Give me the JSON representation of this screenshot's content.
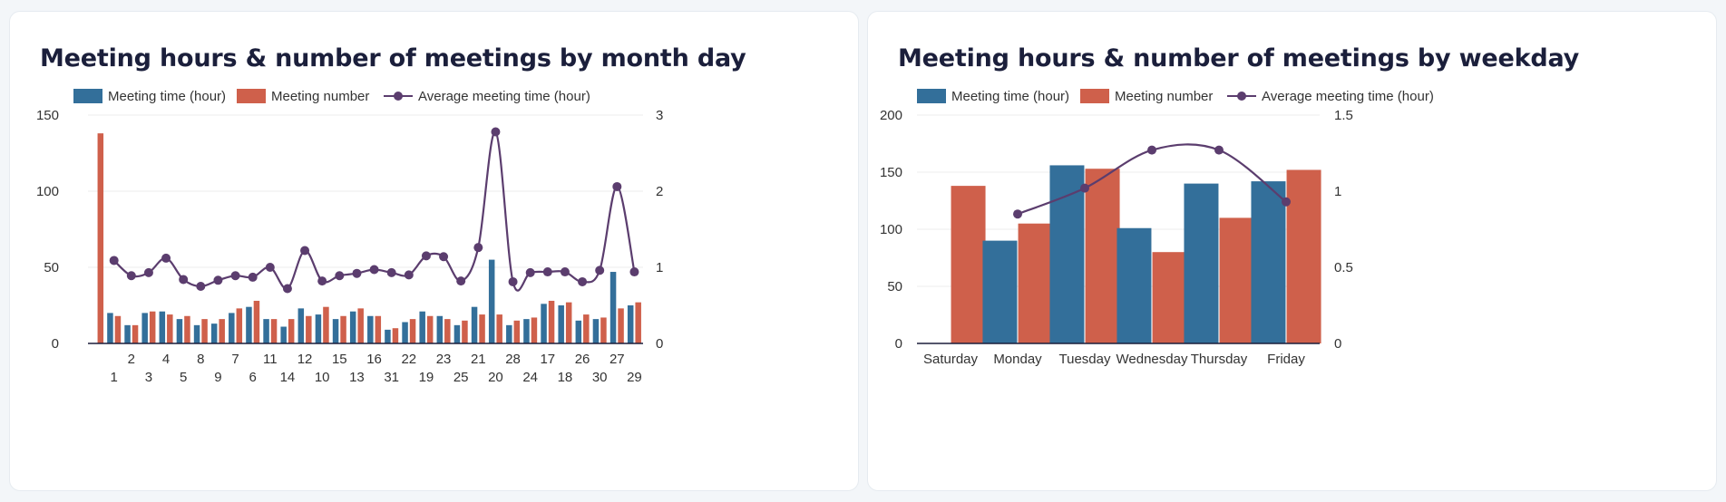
{
  "colors": {
    "meeting_time": "#336f9a",
    "meeting_number": "#cf604b",
    "average": "#5b3d6e",
    "grid": "#ececec",
    "axis": "#1b1f3b",
    "text": "#333333"
  },
  "chart_data": [
    {
      "type": "bar",
      "title": "Meeting hours & number of meetings by month day",
      "legend": {
        "position": "top",
        "items": [
          "Meeting time (hour)",
          "Meeting number",
          "Average meeting time (hour)"
        ]
      },
      "categories": [
        "",
        "1",
        "2",
        "3",
        "4",
        "5",
        "8",
        "9",
        "7",
        "6",
        "11",
        "14",
        "12",
        "10",
        "15",
        "13",
        "16",
        "31",
        "22",
        "19",
        "23",
        "25",
        "21",
        "20",
        "28",
        "24",
        "17",
        "18",
        "26",
        "30",
        "27",
        "29"
      ],
      "series": [
        {
          "name": "Meeting time (hour)",
          "axis": "left",
          "type": "bar",
          "values": [
            null,
            20,
            12,
            20,
            21,
            16,
            12,
            13,
            20,
            24,
            16,
            11,
            23,
            19,
            16,
            21,
            18,
            9,
            14,
            21,
            18,
            12,
            24,
            55,
            12,
            16,
            26,
            25,
            15,
            16,
            47,
            25
          ]
        },
        {
          "name": "Meeting number",
          "axis": "left",
          "type": "bar",
          "values": [
            138,
            18,
            12,
            21,
            19,
            18,
            16,
            16,
            23,
            28,
            16,
            16,
            18,
            24,
            18,
            23,
            18,
            10,
            16,
            18,
            16,
            15,
            19,
            19,
            15,
            17,
            28,
            27,
            19,
            17,
            23,
            27
          ]
        },
        {
          "name": "Average meeting time (hour)",
          "axis": "right",
          "type": "line",
          "values": [
            null,
            1.09,
            0.89,
            0.93,
            1.12,
            0.84,
            0.75,
            0.83,
            0.89,
            0.87,
            1.0,
            0.72,
            1.22,
            0.82,
            0.89,
            0.92,
            0.97,
            0.93,
            0.9,
            1.15,
            1.14,
            0.82,
            1.26,
            2.78,
            0.81,
            0.93,
            0.94,
            0.94,
            0.81,
            0.96,
            2.06,
            0.94
          ]
        }
      ],
      "yleft": {
        "ylim": [
          0,
          150
        ],
        "ticks": [
          "0",
          "50",
          "100",
          "150"
        ]
      },
      "yright": {
        "ylim": [
          0,
          3
        ],
        "ticks": [
          "0",
          "1",
          "2",
          "3"
        ]
      }
    },
    {
      "type": "bar",
      "title": "Meeting hours & number of meetings by weekday",
      "legend": {
        "position": "top",
        "items": [
          "Meeting time (hour)",
          "Meeting number",
          "Average meeting time (hour)"
        ]
      },
      "categories": [
        "Saturday",
        "Monday",
        "Tuesday",
        "Wednesday",
        "Thursday",
        "Friday"
      ],
      "series": [
        {
          "name": "Meeting time (hour)",
          "axis": "left",
          "type": "bar",
          "values": [
            null,
            90,
            156,
            101,
            140,
            142
          ]
        },
        {
          "name": "Meeting number",
          "axis": "left",
          "type": "bar",
          "values": [
            138,
            105,
            153,
            80,
            110,
            152
          ]
        },
        {
          "name": "Average meeting time (hour)",
          "axis": "right",
          "type": "line",
          "values": [
            null,
            0.85,
            1.02,
            1.27,
            1.27,
            0.93
          ]
        }
      ],
      "yleft": {
        "ylim": [
          0,
          200
        ],
        "ticks": [
          "0",
          "50",
          "100",
          "150",
          "200"
        ]
      },
      "yright": {
        "ylim": [
          0,
          1.5
        ],
        "ticks": [
          "0",
          "0.5",
          "1",
          "1.5"
        ]
      }
    }
  ]
}
